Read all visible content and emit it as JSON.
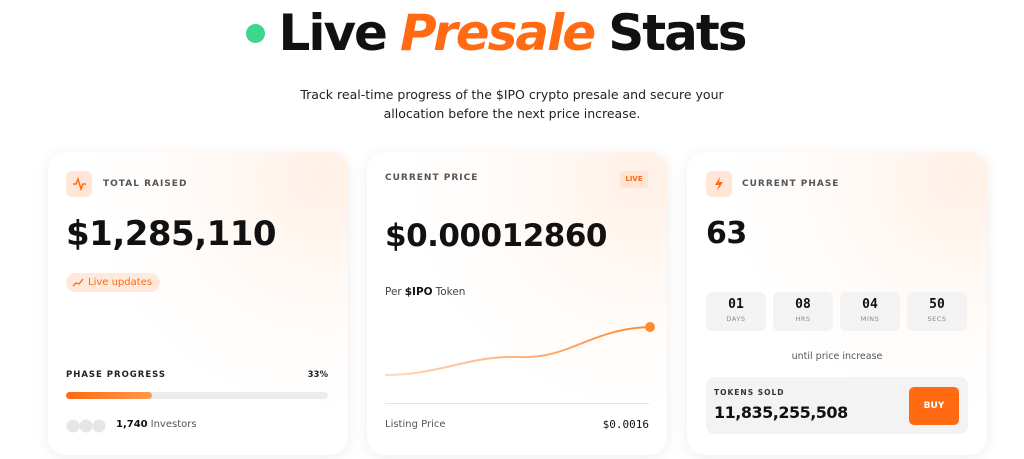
{
  "header": {
    "title_1": "Live",
    "title_2": "Presale",
    "title_3": "Stats",
    "subtitle_1": "Track real-time progress of the $IPO crypto presale and secure your",
    "subtitle_2": "allocation before the next price increase."
  },
  "cards": [
    {
      "label": "TOTAL RAISED",
      "amount": "$1,285,110",
      "badge": "Live updates",
      "progress": {
        "label": "PHASE PROGRESS",
        "value": 33,
        "value_label": "33%"
      },
      "investors_count": "1,740",
      "investors_text": "Investors"
    },
    {
      "label": "CURRENT PRICE",
      "badge": "LIVE",
      "amount": "$0.00012860",
      "unit_1": "Per",
      "unit_2": "$IPO",
      "unit_3": "Token",
      "listing_label": "Listing Price",
      "listing_value": "$0.0016"
    },
    {
      "label": "CURRENT PHASE",
      "amount": 63,
      "countdown": [
        {
          "value": "01",
          "unit": "DAYS"
        },
        {
          "value": "08",
          "unit": "HRS"
        },
        {
          "value": "04",
          "unit": "MINS"
        },
        {
          "value": "50",
          "unit": "SECS"
        }
      ],
      "countdown_note": "until price increase",
      "tokens_label": "TOKENS SOLD",
      "tokens_value": "11,835,255,508",
      "button": "BUY"
    }
  ]
}
